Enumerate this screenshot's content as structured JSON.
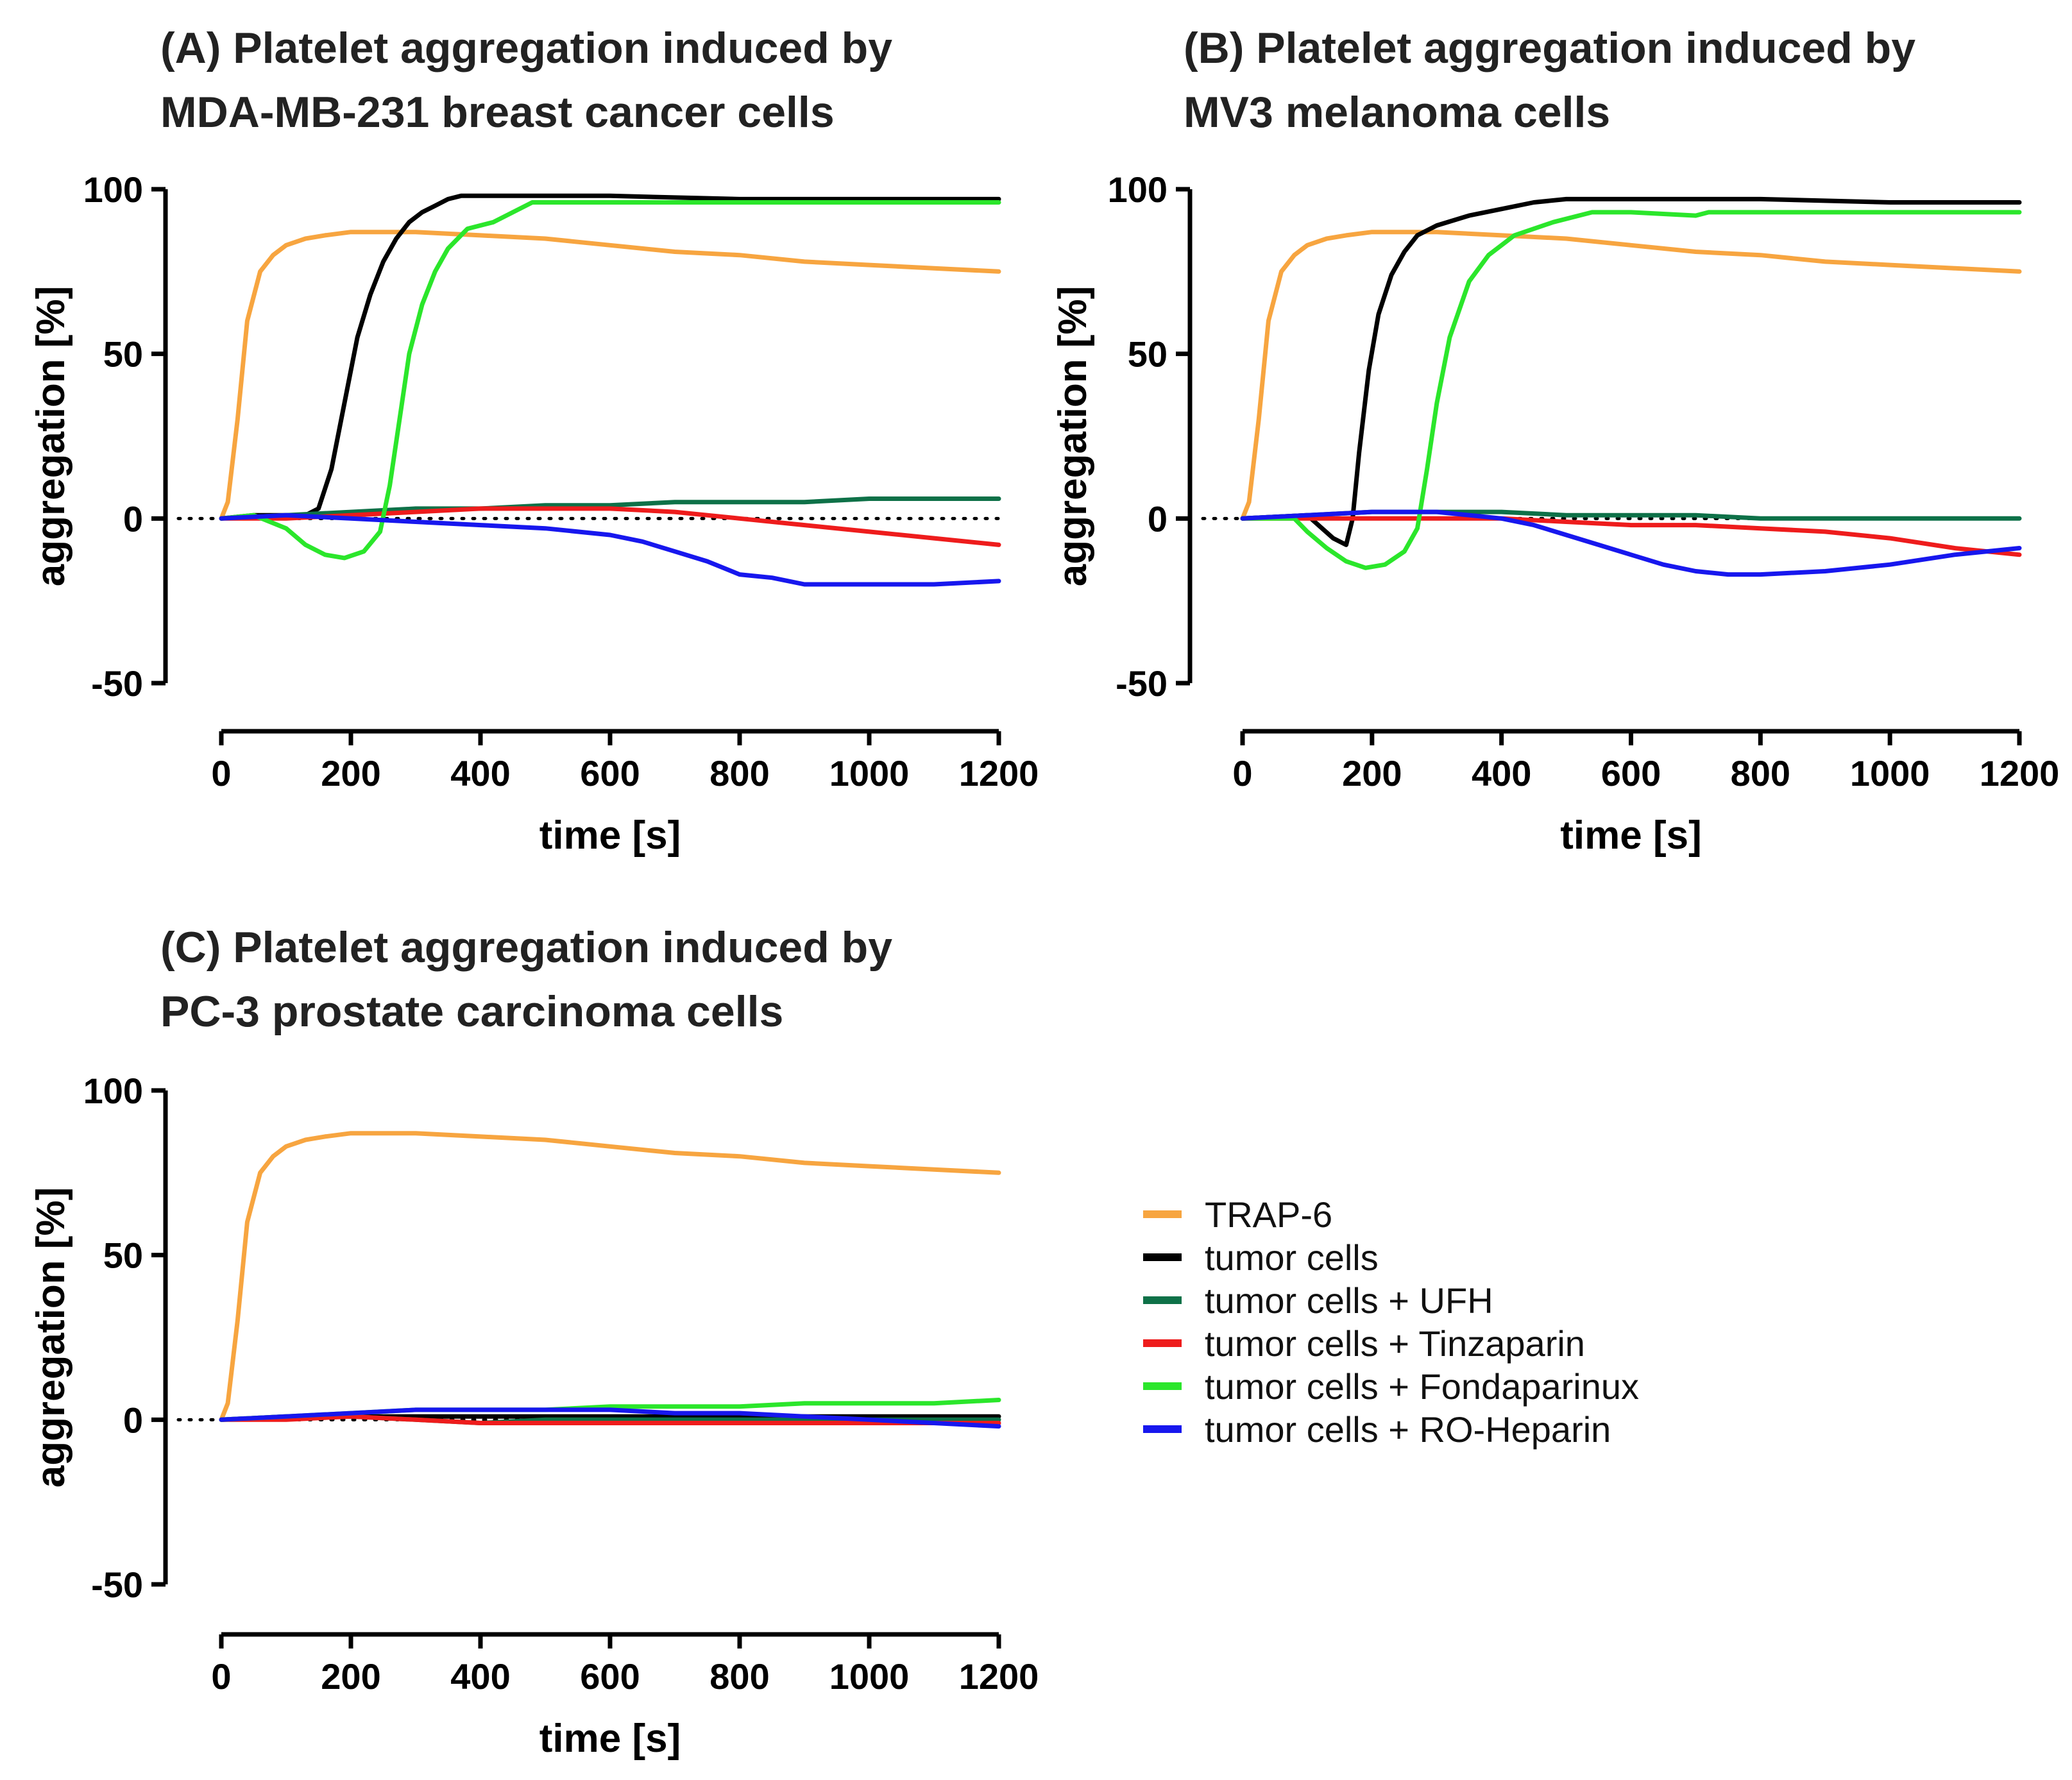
{
  "chart_data": [
    {
      "type": "line",
      "title_lines": [
        "(A) Platelet aggregation induced by",
        "MDA-MB-231 breast cancer cells"
      ],
      "xlabel": "time [s]",
      "ylabel": "aggregation [%]",
      "xlim": [
        0,
        1200
      ],
      "ylim": [
        -50,
        100
      ],
      "xticks": [
        0,
        200,
        400,
        600,
        800,
        1000,
        1200
      ],
      "yticks": [
        -50,
        0,
        50,
        100
      ],
      "reference_line_y": 0,
      "series": [
        {
          "name": "TRAP-6",
          "color": "#F7A540",
          "x": [
            0,
            10,
            25,
            40,
            60,
            80,
            100,
            130,
            160,
            200,
            250,
            300,
            400,
            500,
            600,
            700,
            800,
            900,
            1000,
            1100,
            1200
          ],
          "y": [
            0,
            5,
            30,
            60,
            75,
            80,
            83,
            85,
            86,
            87,
            87,
            87,
            86,
            85,
            83,
            81,
            80,
            78,
            77,
            76,
            75
          ]
        },
        {
          "name": "tumor cells",
          "color": "#000000",
          "x": [
            0,
            50,
            100,
            130,
            150,
            170,
            190,
            210,
            230,
            250,
            270,
            290,
            310,
            330,
            350,
            370,
            400,
            500,
            600,
            800,
            1000,
            1200
          ],
          "y": [
            0,
            1,
            1,
            1,
            3,
            15,
            35,
            55,
            68,
            78,
            85,
            90,
            93,
            95,
            97,
            98,
            98,
            98,
            98,
            97,
            97,
            97
          ]
        },
        {
          "name": "tumor cells + UFH",
          "color": "#0E7148",
          "x": [
            0,
            100,
            200,
            300,
            400,
            500,
            600,
            700,
            800,
            900,
            1000,
            1100,
            1200
          ],
          "y": [
            0,
            1,
            2,
            3,
            3,
            4,
            4,
            5,
            5,
            5,
            6,
            6,
            6
          ]
        },
        {
          "name": "tumor cells + Tinzaparin",
          "color": "#EE1C1C",
          "x": [
            0,
            100,
            200,
            300,
            400,
            500,
            600,
            700,
            800,
            900,
            1000,
            1100,
            1200
          ],
          "y": [
            0,
            0,
            1,
            2,
            3,
            3,
            3,
            2,
            0,
            -2,
            -4,
            -6,
            -8
          ]
        },
        {
          "name": "tumor cells + Fondaparinux",
          "color": "#2BE62B",
          "x": [
            0,
            50,
            100,
            130,
            160,
            190,
            220,
            245,
            260,
            275,
            290,
            310,
            330,
            350,
            380,
            420,
            450,
            480,
            520,
            600,
            800,
            1000,
            1200
          ],
          "y": [
            0,
            1,
            -3,
            -8,
            -11,
            -12,
            -10,
            -4,
            10,
            30,
            50,
            65,
            75,
            82,
            88,
            90,
            93,
            96,
            96,
            96,
            96,
            96,
            96
          ]
        },
        {
          "name": "tumor cells + RO-Heparin",
          "color": "#1717EE",
          "x": [
            0,
            100,
            200,
            300,
            400,
            500,
            600,
            650,
            700,
            750,
            800,
            850,
            900,
            1000,
            1100,
            1200
          ],
          "y": [
            0,
            1,
            0,
            -1,
            -2,
            -3,
            -5,
            -7,
            -10,
            -13,
            -17,
            -18,
            -20,
            -20,
            -20,
            -19
          ]
        }
      ]
    },
    {
      "type": "line",
      "title_lines": [
        "(B) Platelet aggregation induced by",
        "MV3 melanoma cells"
      ],
      "xlabel": "time [s]",
      "ylabel": "aggregation [%]",
      "xlim": [
        0,
        1200
      ],
      "ylim": [
        -50,
        100
      ],
      "xticks": [
        0,
        200,
        400,
        600,
        800,
        1000,
        1200
      ],
      "yticks": [
        -50,
        0,
        50,
        100
      ],
      "reference_line_y": 0,
      "series": [
        {
          "name": "TRAP-6",
          "color": "#F7A540",
          "x": [
            0,
            10,
            25,
            40,
            60,
            80,
            100,
            130,
            160,
            200,
            250,
            300,
            400,
            500,
            600,
            700,
            800,
            900,
            1000,
            1100,
            1200
          ],
          "y": [
            0,
            5,
            30,
            60,
            75,
            80,
            83,
            85,
            86,
            87,
            87,
            87,
            86,
            85,
            83,
            81,
            80,
            78,
            77,
            76,
            75
          ]
        },
        {
          "name": "tumor cells",
          "color": "#000000",
          "x": [
            0,
            100,
            140,
            160,
            170,
            180,
            195,
            210,
            230,
            250,
            270,
            300,
            350,
            400,
            450,
            500,
            600,
            800,
            1000,
            1200
          ],
          "y": [
            0,
            1,
            -6,
            -8,
            0,
            20,
            45,
            62,
            74,
            81,
            86,
            89,
            92,
            94,
            96,
            97,
            97,
            97,
            96,
            96
          ]
        },
        {
          "name": "tumor cells + UFH",
          "color": "#0E7148",
          "x": [
            0,
            100,
            200,
            300,
            400,
            500,
            600,
            700,
            800,
            900,
            1000,
            1100,
            1200
          ],
          "y": [
            0,
            1,
            2,
            2,
            2,
            1,
            1,
            1,
            0,
            0,
            0,
            0,
            0
          ]
        },
        {
          "name": "tumor cells + Tinzaparin",
          "color": "#EE1C1C",
          "x": [
            0,
            100,
            200,
            300,
            400,
            500,
            600,
            700,
            800,
            900,
            1000,
            1100,
            1200
          ],
          "y": [
            0,
            0,
            0,
            0,
            0,
            -1,
            -2,
            -2,
            -3,
            -4,
            -6,
            -9,
            -11
          ]
        },
        {
          "name": "tumor cells + Fondaparinux",
          "color": "#2BE62B",
          "x": [
            0,
            80,
            100,
            130,
            160,
            190,
            220,
            250,
            270,
            285,
            300,
            320,
            350,
            380,
            420,
            480,
            540,
            600,
            700,
            720,
            800,
            1000,
            1200
          ],
          "y": [
            0,
            0,
            -4,
            -9,
            -13,
            -15,
            -14,
            -10,
            -3,
            15,
            35,
            55,
            72,
            80,
            86,
            90,
            93,
            93,
            92,
            93,
            93,
            93,
            93
          ]
        },
        {
          "name": "tumor cells + RO-Heparin",
          "color": "#1717EE",
          "x": [
            0,
            100,
            200,
            300,
            350,
            400,
            450,
            500,
            550,
            600,
            650,
            700,
            750,
            800,
            900,
            1000,
            1100,
            1200
          ],
          "y": [
            0,
            1,
            2,
            2,
            1,
            0,
            -2,
            -5,
            -8,
            -11,
            -14,
            -16,
            -17,
            -17,
            -16,
            -14,
            -11,
            -9
          ]
        }
      ]
    },
    {
      "type": "line",
      "title_lines": [
        "(C) Platelet aggregation induced by",
        "PC-3 prostate carcinoma cells"
      ],
      "xlabel": "time [s]",
      "ylabel": "aggregation [%]",
      "xlim": [
        0,
        1200
      ],
      "ylim": [
        -50,
        100
      ],
      "xticks": [
        0,
        200,
        400,
        600,
        800,
        1000,
        1200
      ],
      "yticks": [
        -50,
        0,
        50,
        100
      ],
      "reference_line_y": 0,
      "series": [
        {
          "name": "TRAP-6",
          "color": "#F7A540",
          "x": [
            0,
            10,
            25,
            40,
            60,
            80,
            100,
            130,
            160,
            200,
            250,
            300,
            400,
            500,
            600,
            700,
            800,
            900,
            1000,
            1100,
            1200
          ],
          "y": [
            0,
            5,
            30,
            60,
            75,
            80,
            83,
            85,
            86,
            87,
            87,
            87,
            86,
            85,
            83,
            81,
            80,
            78,
            77,
            76,
            75
          ]
        },
        {
          "name": "tumor cells",
          "color": "#000000",
          "x": [
            0,
            200,
            400,
            600,
            800,
            1000,
            1200
          ],
          "y": [
            0,
            1,
            1,
            1,
            1,
            1,
            1
          ]
        },
        {
          "name": "tumor cells + UFH",
          "color": "#0E7148",
          "x": [
            0,
            100,
            200,
            300,
            400,
            500,
            600,
            700,
            800,
            900,
            1000,
            1100,
            1200
          ],
          "y": [
            0,
            1,
            1,
            0,
            -1,
            0,
            0,
            0,
            0,
            0,
            0,
            0,
            0
          ]
        },
        {
          "name": "tumor cells + Tinzaparin",
          "color": "#EE1C1C",
          "x": [
            0,
            100,
            200,
            300,
            400,
            500,
            600,
            700,
            800,
            900,
            1000,
            1100,
            1200
          ],
          "y": [
            0,
            0,
            1,
            0,
            -1,
            -1,
            -1,
            -1,
            -1,
            -1,
            -1,
            -1,
            -1
          ]
        },
        {
          "name": "tumor cells + Fondaparinux",
          "color": "#2BE62B",
          "x": [
            0,
            100,
            200,
            300,
            400,
            500,
            600,
            700,
            800,
            900,
            1000,
            1100,
            1200
          ],
          "y": [
            0,
            1,
            2,
            3,
            3,
            3,
            4,
            4,
            4,
            5,
            5,
            5,
            6
          ]
        },
        {
          "name": "tumor cells + RO-Heparin",
          "color": "#1717EE",
          "x": [
            0,
            100,
            200,
            300,
            400,
            500,
            600,
            700,
            800,
            900,
            1000,
            1100,
            1200
          ],
          "y": [
            0,
            1,
            2,
            3,
            3,
            3,
            3,
            2,
            2,
            1,
            0,
            -1,
            -2
          ]
        }
      ]
    }
  ],
  "legend": {
    "items": [
      {
        "label": "TRAP-6",
        "color": "#F7A540"
      },
      {
        "label": "tumor cells",
        "color": "#000000"
      },
      {
        "label": "tumor cells + UFH",
        "color": "#0E7148"
      },
      {
        "label": "tumor cells + Tinzaparin",
        "color": "#EE1C1C"
      },
      {
        "label": "tumor cells + Fondaparinux",
        "color": "#2BE62B"
      },
      {
        "label": "tumor cells + RO-Heparin",
        "color": "#1717EE"
      }
    ]
  }
}
